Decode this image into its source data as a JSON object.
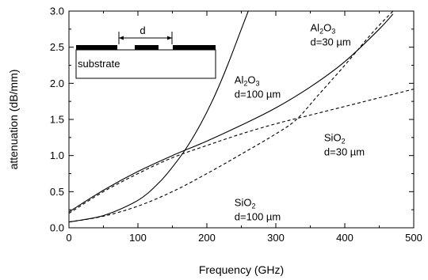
{
  "chart_data": {
    "type": "line",
    "xlabel": "Frequency (GHz)",
    "ylabel": "attenuation (dB/mm)",
    "xlim": [
      0,
      500
    ],
    "ylim": [
      0.0,
      3.0
    ],
    "x_ticks": [
      "0",
      "100",
      "200",
      "300",
      "400",
      "500"
    ],
    "y_ticks": [
      "0.0",
      "0.5",
      "1.0",
      "1.5",
      "2.0",
      "2.5",
      "3.0"
    ],
    "grid": false,
    "series": [
      {
        "material": "Al2O3",
        "gap": "d=100 µm",
        "style": "solid",
        "x": [
          0,
          50,
          100,
          130,
          150,
          170,
          190,
          210,
          230,
          250,
          260
        ],
        "y": [
          0.08,
          0.17,
          0.38,
          0.62,
          0.84,
          1.1,
          1.42,
          1.8,
          2.25,
          2.75,
          3.0
        ]
      },
      {
        "material": "Al2O3",
        "gap": "d=30 µm",
        "style": "solid",
        "x": [
          0,
          50,
          100,
          150,
          200,
          250,
          300,
          350,
          400,
          450,
          470
        ],
        "y": [
          0.22,
          0.52,
          0.78,
          1.0,
          1.2,
          1.42,
          1.66,
          1.95,
          2.3,
          2.75,
          2.96
        ]
      },
      {
        "material": "SiO2",
        "gap": "d=30 µm",
        "style": "dashed",
        "x": [
          0,
          50,
          100,
          150,
          200,
          250,
          300,
          350,
          400,
          450,
          500
        ],
        "y": [
          0.2,
          0.5,
          0.75,
          0.97,
          1.14,
          1.3,
          1.44,
          1.56,
          1.68,
          1.8,
          1.92
        ]
      },
      {
        "material": "SiO2",
        "gap": "d=100 µm",
        "style": "dashed",
        "x": [
          0,
          50,
          100,
          150,
          200,
          250,
          300,
          330,
          360,
          400,
          440,
          470
        ],
        "y": [
          0.08,
          0.16,
          0.3,
          0.5,
          0.75,
          1.02,
          1.3,
          1.5,
          1.82,
          2.25,
          2.7,
          3.0
        ]
      }
    ],
    "annotations": [
      {
        "material": "Al2O3",
        "gap": "d=100 µm",
        "at_x": 240,
        "at_y": 2.0
      },
      {
        "material": "Al2O3",
        "gap": "d=30 µm",
        "at_x": 350,
        "at_y": 2.72
      },
      {
        "material": "SiO2",
        "gap": "d=30 µm",
        "at_x": 370,
        "at_y": 1.2
      },
      {
        "material": "SiO2",
        "gap": "d=100 µm",
        "at_x": 240,
        "at_y": 0.3
      }
    ],
    "inset": {
      "gap_label": "d",
      "substrate_label": "substrate"
    }
  }
}
